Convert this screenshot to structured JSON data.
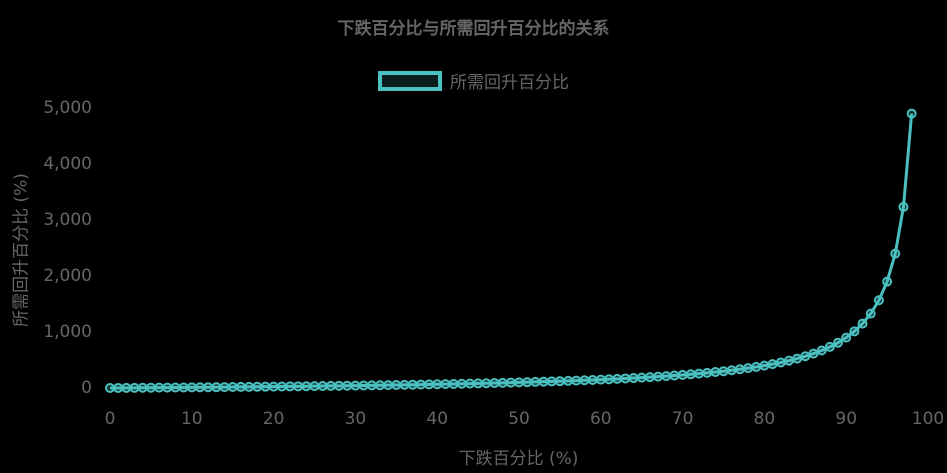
{
  "chart_data": {
    "type": "line",
    "title": "下跌百分比与所需回升百分比的关系",
    "xlabel": "下跌百分比 (%)",
    "ylabel": "所需回升百分比 (%)",
    "legend": {
      "label": "所需回升百分比",
      "position": "top"
    },
    "xlim": [
      0,
      100
    ],
    "ylim": [
      0,
      5000
    ],
    "x_ticks": [
      "0",
      "10",
      "20",
      "30",
      "40",
      "50",
      "60",
      "70",
      "80",
      "90",
      "100"
    ],
    "y_ticks": [
      "0",
      "1,000",
      "2,000",
      "3,000",
      "4,000",
      "5,000"
    ],
    "grid": false,
    "series": [
      {
        "name": "所需回升百分比",
        "color": "#4bc0c0",
        "formula_note": "y = x / (100 - x) * 100",
        "x": [
          0,
          1,
          2,
          3,
          4,
          5,
          6,
          7,
          8,
          9,
          10,
          11,
          12,
          13,
          14,
          15,
          16,
          17,
          18,
          19,
          20,
          21,
          22,
          23,
          24,
          25,
          26,
          27,
          28,
          29,
          30,
          31,
          32,
          33,
          34,
          35,
          36,
          37,
          38,
          39,
          40,
          41,
          42,
          43,
          44,
          45,
          46,
          47,
          48,
          49,
          50,
          51,
          52,
          53,
          54,
          55,
          56,
          57,
          58,
          59,
          60,
          61,
          62,
          63,
          64,
          65,
          66,
          67,
          68,
          69,
          70,
          71,
          72,
          73,
          74,
          75,
          76,
          77,
          78,
          79,
          80,
          81,
          82,
          83,
          84,
          85,
          86,
          87,
          88,
          89,
          90,
          91,
          92,
          93,
          94,
          95,
          96,
          97,
          98
        ],
        "y": [
          0,
          1.01,
          2.04,
          3.09,
          4.17,
          5.26,
          6.38,
          7.53,
          8.7,
          9.89,
          11.11,
          12.36,
          13.64,
          14.94,
          16.28,
          17.65,
          19.05,
          20.48,
          21.95,
          23.46,
          25,
          26.58,
          28.21,
          29.87,
          31.58,
          33.33,
          35.14,
          36.99,
          38.89,
          40.85,
          42.86,
          44.93,
          47.06,
          49.25,
          51.52,
          53.85,
          56.25,
          58.73,
          61.29,
          63.93,
          66.67,
          69.49,
          72.41,
          75.44,
          78.57,
          81.82,
          85.19,
          88.68,
          92.31,
          96.08,
          100,
          104.08,
          108.33,
          112.77,
          117.39,
          122.22,
          127.27,
          132.56,
          138.1,
          143.9,
          150,
          156.41,
          163.16,
          170.27,
          177.78,
          185.71,
          194.12,
          203.03,
          212.5,
          222.58,
          233.33,
          244.83,
          257.14,
          270.37,
          284.62,
          300,
          316.67,
          334.78,
          354.55,
          376.19,
          400,
          426.32,
          455.56,
          488.24,
          525,
          566.67,
          614.29,
          669.23,
          733.33,
          809.09,
          900,
          1011.11,
          1150,
          1328.57,
          1566.67,
          1900,
          2400,
          3233.33,
          4900
        ]
      }
    ]
  }
}
